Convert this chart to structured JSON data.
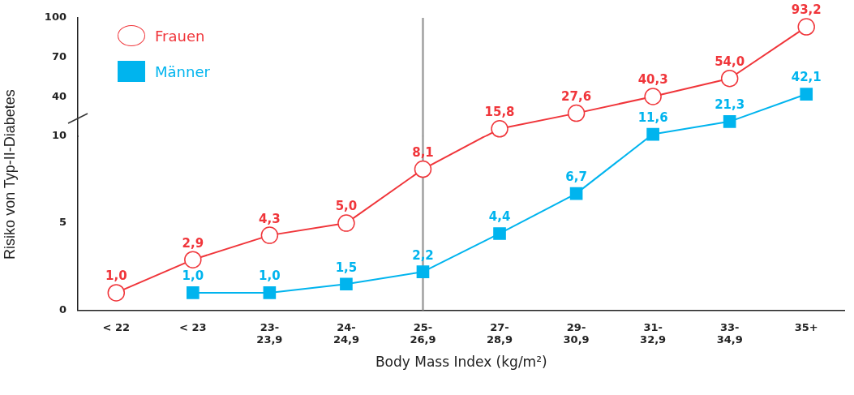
{
  "chart_data": [
    {
      "type": "line",
      "ylabel": "Risiko von Typ-II-Diabetes",
      "categories": [
        "< 22",
        "< 23",
        "23-\n23,9",
        "24-\n24,9",
        "25-\n26,9",
        "27-\n28,9",
        "29-\n30,9",
        "31-\n32,9",
        "33-\n34,9",
        "35+"
      ],
      "series": [
        {
          "name": "Frauen",
          "color": "#f0353a",
          "marker": "circle",
          "values": [
            null,
            null,
            null,
            null,
            null,
            15.8,
            27.6,
            40.3,
            54.0,
            93.2
          ],
          "value_labels": [
            null,
            null,
            null,
            null,
            null,
            "15,8",
            "27,6",
            "40,3",
            "54,0",
            "93,2"
          ]
        },
        {
          "name": "Männer",
          "color": "#00b4ee",
          "marker": "square",
          "values": [
            null,
            null,
            null,
            null,
            null,
            null,
            null,
            11.6,
            21.3,
            42.1
          ],
          "value_labels": [
            null,
            null,
            null,
            null,
            null,
            null,
            null,
            "11,6",
            "21,3",
            "42,1"
          ]
        }
      ],
      "ylim": [
        10,
        100
      ],
      "yticks": [
        40,
        70,
        100
      ],
      "tick_labels": "y",
      "ref_lines": [
        {
          "axis": "x",
          "value": "25-\n26,9",
          "color": "#a0a0a0"
        }
      ],
      "grid": false,
      "legend": "top left",
      "line_style": "solid"
    },
    {
      "type": "line",
      "xlabel": "Body Mass Index (kg/m²)",
      "categories": [
        "< 22",
        "< 23",
        "23-\n23,9",
        "24-\n24,9",
        "25-\n26,9",
        "27-\n28,9",
        "29-\n30,9",
        "31-\n32,9",
        "33-\n34,9",
        "35+"
      ],
      "series": [
        {
          "color": "#f0353a",
          "marker": "circle",
          "values": [
            1.0,
            2.9,
            4.3,
            5.0,
            8.1,
            null,
            null,
            null,
            null,
            null
          ],
          "value_labels": [
            "1,0",
            "2,9",
            "4,3",
            "5,0",
            "8,1",
            null,
            null,
            null,
            null,
            null
          ]
        },
        {
          "color": "#00b4ee",
          "marker": "square",
          "values": [
            null,
            1.0,
            1.0,
            1.5,
            2.2,
            4.4,
            6.7,
            null,
            null,
            null
          ],
          "value_labels": [
            null,
            "1,0",
            "1,0",
            "1,5",
            "2,2",
            "4,4",
            "6,7",
            null,
            null,
            null
          ]
        }
      ],
      "ylim": [
        0,
        10
      ],
      "yticks": [
        0,
        5,
        10
      ],
      "ref_lines": [
        {
          "axis": "x",
          "value": "25-\n26,9",
          "color": "#a0a0a0"
        }
      ],
      "grid": false,
      "line_style": "solid"
    }
  ]
}
